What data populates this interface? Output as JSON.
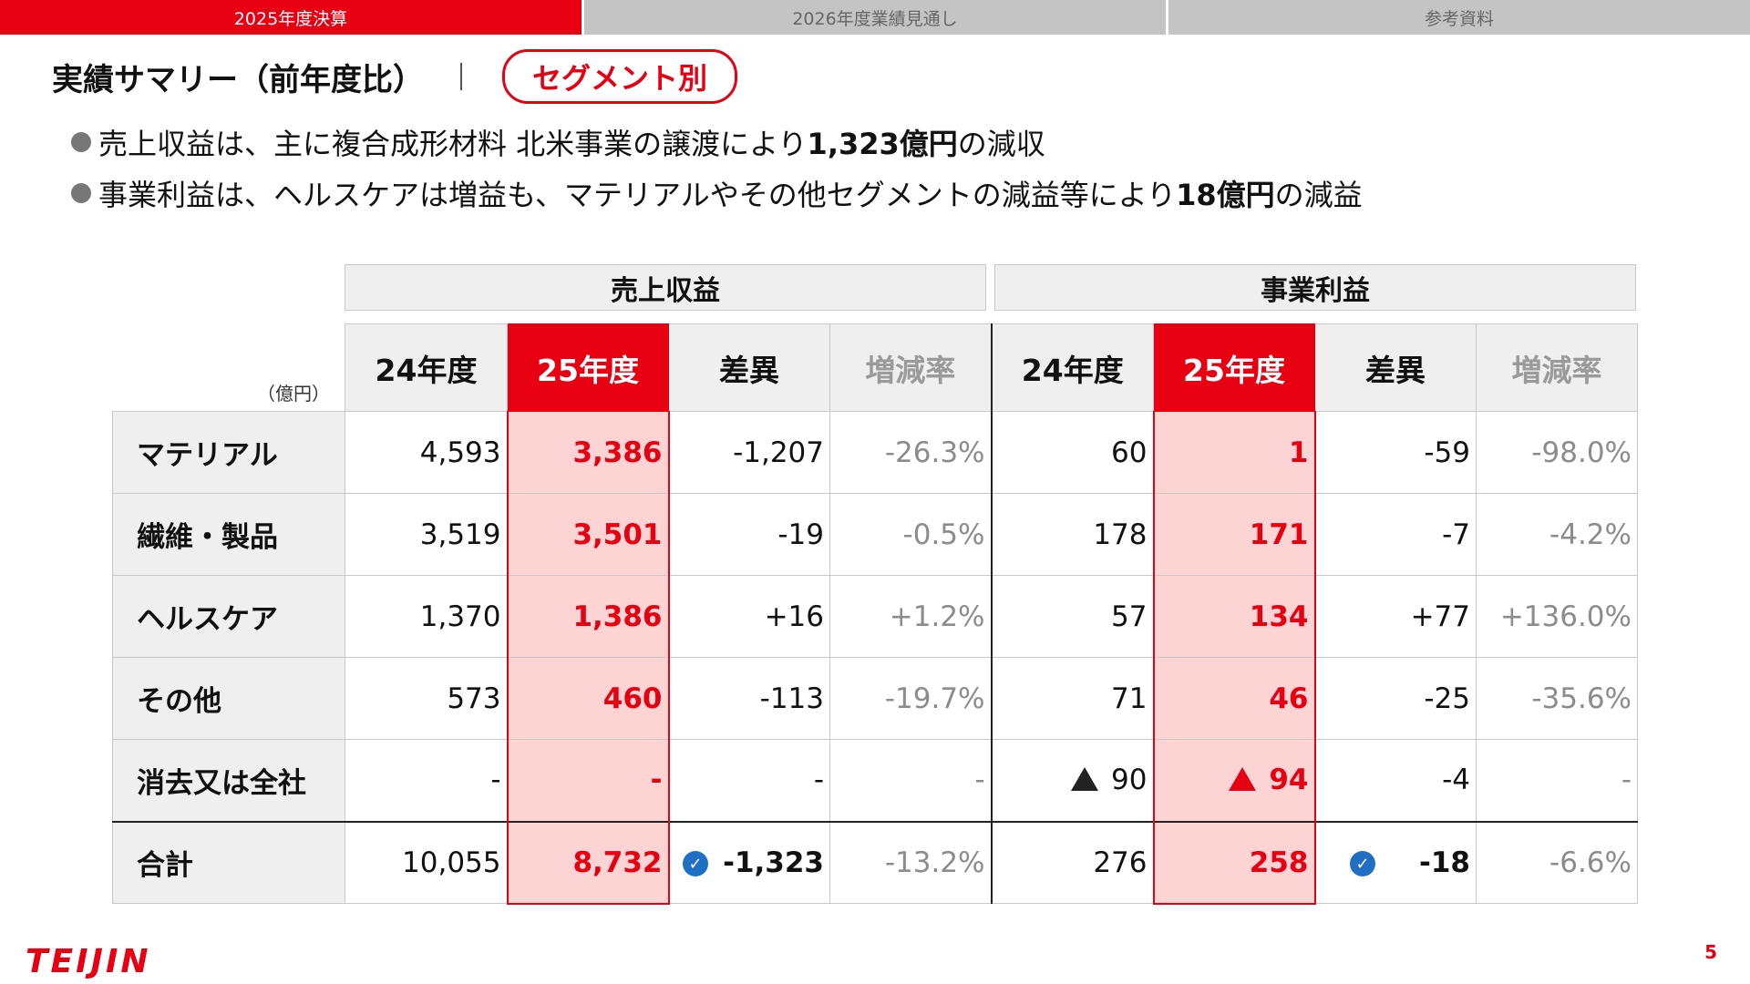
{
  "tabs": [
    {
      "label": "2025年度決算",
      "active": true
    },
    {
      "label": "2026年度業績見通し",
      "active": false
    },
    {
      "label": "参考資料",
      "active": false
    }
  ],
  "header": {
    "title": "実績サマリー（前年度比）",
    "segment_label": "セグメント別"
  },
  "bullets": [
    {
      "pre": "売上収益は、主に複合成形材料 北米事業の譲渡により",
      "bold": "1,323億円",
      "post": "の減収"
    },
    {
      "pre": "事業利益は、ヘルスケアは増益も、マテリアルやその他セグメントの減益等により",
      "bold": "18億円",
      "post": "の減益"
    }
  ],
  "table": {
    "unit": "（億円）",
    "groups": {
      "revenue": "売上収益",
      "profit": "事業利益"
    },
    "columns": [
      "24年度",
      "25年度",
      "差異",
      "増減率",
      "24年度",
      "25年度",
      "差異",
      "増減率"
    ],
    "rows": [
      {
        "label": "マテリアル",
        "cells": [
          "4,593",
          "3,386",
          "-1,207",
          "-26.3%",
          "60",
          "1",
          "-59",
          "-98.0%"
        ]
      },
      {
        "label": "繊維・製品",
        "cells": [
          "3,519",
          "3,501",
          "-19",
          "-0.5%",
          "178",
          "171",
          "-7",
          "-4.2%"
        ]
      },
      {
        "label": "ヘルスケア",
        "cells": [
          "1,370",
          "1,386",
          "+16",
          "+1.2%",
          "57",
          "134",
          "+77",
          "+136.0%"
        ]
      },
      {
        "label": "その他",
        "cells": [
          "573",
          "460",
          "-113",
          "-19.7%",
          "71",
          "46",
          "-25",
          "-35.6%"
        ]
      },
      {
        "label": "消去又は全社",
        "cells": [
          "-",
          "-",
          "-",
          "-",
          "90",
          "94",
          "-4",
          "-"
        ]
      }
    ],
    "total": {
      "label": "合計",
      "cells": [
        "10,055",
        "8,732",
        "-1,323",
        "-13.2%",
        "276",
        "258",
        "-18",
        "-6.6%"
      ]
    },
    "check_mark": "✓"
  },
  "footer": {
    "logo": "TEIJIN",
    "page_number": "5"
  },
  "colors": {
    "accent": "#e60012",
    "highlight": "#fcd4d4",
    "check": "#1f6fc5"
  }
}
